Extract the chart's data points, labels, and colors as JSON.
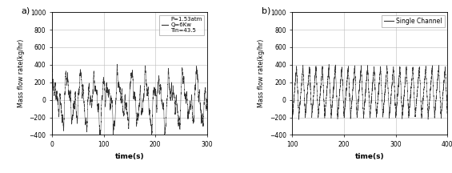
{
  "panel_a": {
    "label": "a)",
    "xlabel": "time(s)",
    "ylabel": "Mass flow rate(kg/hr)",
    "xlim": [
      0,
      300
    ],
    "ylim": [
      -400,
      1000
    ],
    "yticks": [
      -400,
      -200,
      0,
      200,
      400,
      600,
      800,
      1000
    ],
    "xticks": [
      0,
      100,
      200,
      300
    ],
    "legend_lines": [
      "P=1.53atm",
      "Q=6Kw",
      "Tin=43.5"
    ],
    "grid": true
  },
  "panel_b": {
    "label": "b)",
    "xlabel": "time(s)",
    "ylabel": "Mass flow rate(kg/hr)",
    "xlim": [
      100,
      400
    ],
    "ylim": [
      -400,
      1000
    ],
    "yticks": [
      -400,
      -200,
      0,
      200,
      400,
      600,
      800,
      1000
    ],
    "xticks": [
      100,
      200,
      300,
      400
    ],
    "legend_label": "Single Channel",
    "grid": true
  },
  "line_color": "#333333",
  "bg_color": "#ffffff",
  "grid_color": "#bbbbbb",
  "fig_width": 5.65,
  "fig_height": 2.16,
  "dpi": 100
}
